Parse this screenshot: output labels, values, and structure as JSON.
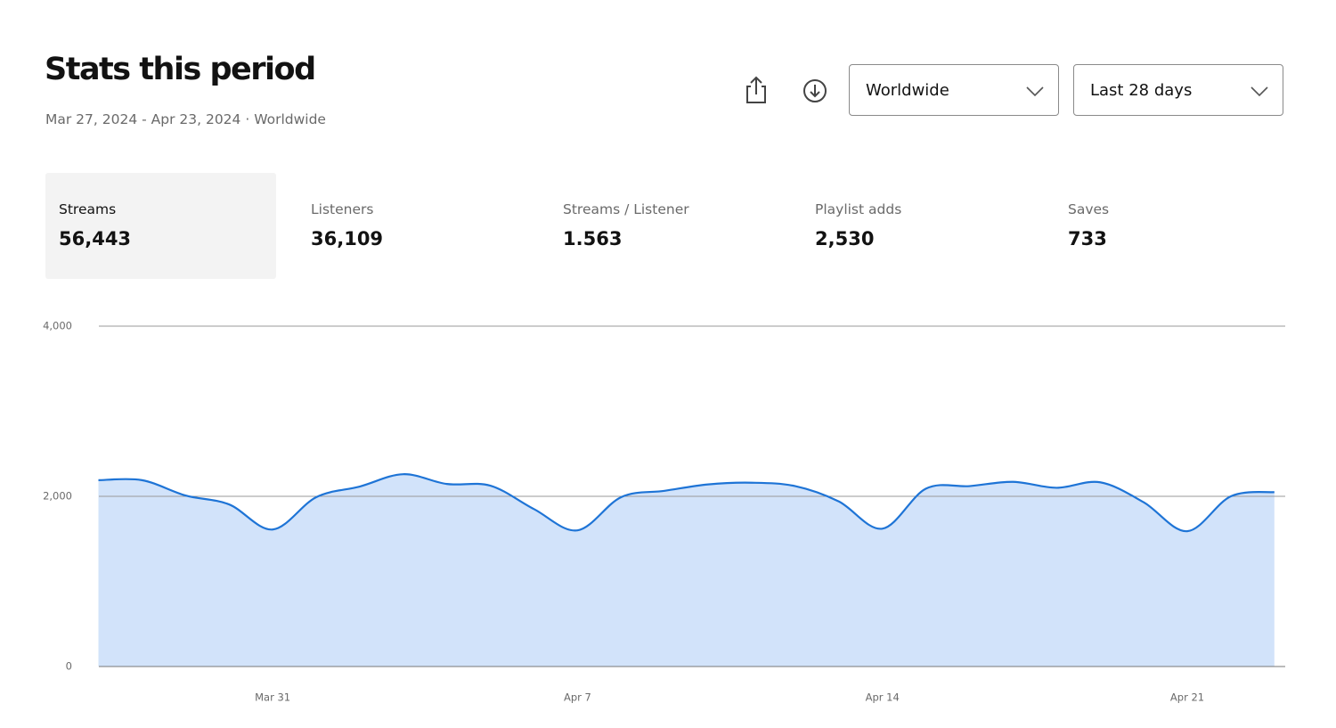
{
  "header": {
    "title": "Stats this period",
    "subtitle": "Mar 27, 2024 - Apr 23, 2024 · Worldwide",
    "region": "Worldwide",
    "period": "Last 28 days"
  },
  "stats": [
    {
      "label": "Streams",
      "value": "56,443"
    },
    {
      "label": "Listeners",
      "value": "36,109"
    },
    {
      "label": "Streams / Listener",
      "value": "1.563"
    },
    {
      "label": "Playlist adds",
      "value": "2,530"
    },
    {
      "label": "Saves",
      "value": "733"
    }
  ],
  "chart_data": {
    "type": "area",
    "categories": [
      null,
      null,
      null,
      null,
      "Mar 31",
      null,
      null,
      null,
      null,
      null,
      null,
      "Apr 7",
      null,
      null,
      null,
      null,
      null,
      null,
      "Apr 14",
      null,
      null,
      null,
      null,
      null,
      null,
      "Apr 21",
      null,
      null
    ],
    "values": [
      2190,
      2190,
      2010,
      1905,
      1610,
      1990,
      2115,
      2260,
      2145,
      2125,
      1850,
      1600,
      1990,
      2065,
      2140,
      2160,
      2120,
      1940,
      1620,
      2090,
      2120,
      2170,
      2100,
      2165,
      1930,
      1590,
      2000,
      2050
    ],
    "color": "#1e74d6",
    "fill": "#d2e3fa",
    "ylim": [
      0,
      4000
    ],
    "yticks": [
      0,
      {
        "value": 2000,
        "label": "2,000"
      },
      {
        "value": 4000,
        "label": "4,000"
      }
    ],
    "grid": true
  }
}
